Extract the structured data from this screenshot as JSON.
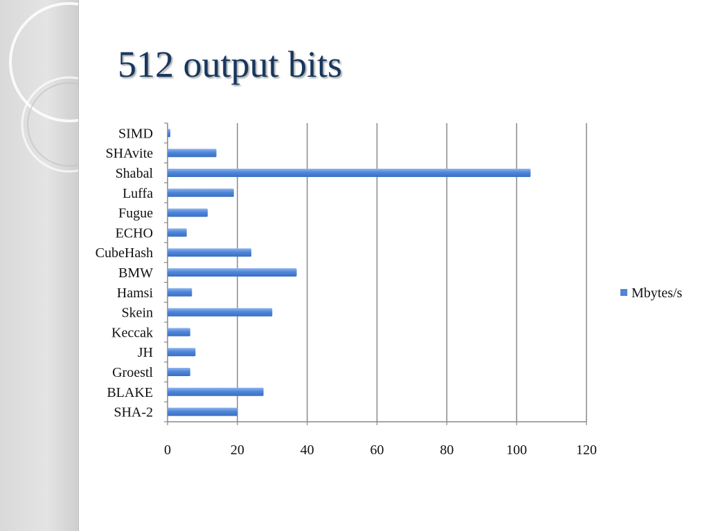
{
  "slide": {
    "title": "512 output bits"
  },
  "colors": {
    "title": "#17375e",
    "bar": "#4f86d9",
    "grid": "#888888"
  },
  "chart_data": {
    "type": "bar",
    "orientation": "horizontal",
    "categories": [
      "SIMD",
      "SHAvite",
      "Shabal",
      "Luffa",
      "Fugue",
      "ECHO",
      "CubeHash",
      "BMW",
      "Hamsi",
      "Skein",
      "Keccak",
      "JH",
      "Groestl",
      "BLAKE",
      "SHA-2"
    ],
    "series": [
      {
        "name": "Mbytes/s",
        "values": [
          0.8,
          14,
          104,
          19,
          11.5,
          5.5,
          24,
          37,
          7,
          30,
          6.5,
          8,
          6.5,
          27.5,
          20
        ]
      }
    ],
    "xlim": [
      0,
      120
    ],
    "xticks": [
      "0",
      "20",
      "40",
      "60",
      "80",
      "100",
      "120"
    ],
    "grid": true,
    "legend_position": "right"
  }
}
